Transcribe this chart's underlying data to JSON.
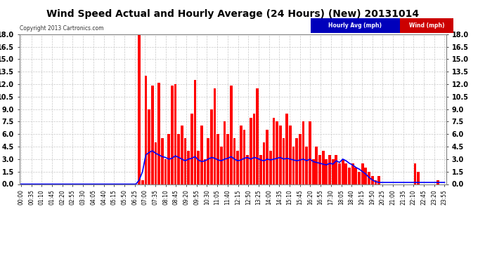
{
  "title": "Wind Speed Actual and Hourly Average (24 Hours) (New) 20131014",
  "copyright": "Copyright 2013 Cartronics.com",
  "legend_hourly_label": "Hourly Avg (mph)",
  "legend_wind_label": "Wind (mph)",
  "ylim": [
    0,
    18.0
  ],
  "yticks": [
    0.0,
    1.5,
    3.0,
    4.5,
    6.0,
    7.5,
    9.0,
    10.5,
    12.0,
    13.5,
    15.0,
    16.5,
    18.0
  ],
  "background_color": "#ffffff",
  "plot_bg_color": "#ffffff",
  "grid_color": "#c8c8c8",
  "bar_color": "#ff0000",
  "line_color": "#0000ff",
  "title_fontsize": 10,
  "tick_fontsize": 6.5,
  "hour_labels": [
    "00:00",
    "00:35",
    "01:10",
    "01:45",
    "02:20",
    "02:55",
    "03:30",
    "04:05",
    "04:40",
    "05:15",
    "05:50",
    "06:25",
    "07:00",
    "07:35",
    "08:10",
    "08:45",
    "09:20",
    "09:55",
    "10:30",
    "11:05",
    "11:40",
    "12:15",
    "12:50",
    "13:25",
    "14:00",
    "14:35",
    "15:10",
    "15:45",
    "16:20",
    "16:55",
    "17:30",
    "18:05",
    "18:40",
    "19:15",
    "19:50",
    "20:25",
    "21:00",
    "21:35",
    "22:10",
    "22:45",
    "23:20",
    "23:55"
  ],
  "wind_values": [
    0.0,
    0.0,
    0.0,
    0.0,
    0.0,
    0.0,
    0.0,
    0.0,
    0.0,
    0.0,
    0.0,
    0.0,
    0.0,
    0.0,
    0.0,
    0.0,
    0.0,
    0.0,
    0.0,
    0.0,
    0.0,
    0.0,
    0.0,
    0.0,
    0.0,
    0.0,
    0.0,
    0.0,
    0.0,
    0.0,
    0.0,
    0.0,
    0.0,
    0.0,
    0.0,
    0.0,
    18.0,
    0.5,
    13.0,
    9.0,
    11.8,
    5.0,
    12.2,
    5.5,
    3.0,
    6.0,
    11.8,
    12.0,
    6.0,
    7.0,
    5.5,
    4.0,
    8.5,
    12.5,
    4.0,
    7.0,
    3.0,
    5.5,
    9.0,
    11.5,
    6.0,
    4.5,
    7.5,
    6.0,
    11.8,
    5.5,
    4.0,
    7.0,
    6.5,
    3.5,
    8.0,
    8.5,
    11.5,
    3.5,
    5.0,
    6.5,
    4.0,
    8.0,
    7.5,
    7.0,
    5.5,
    8.5,
    7.0,
    4.5,
    5.5,
    6.0,
    7.5,
    4.5,
    7.5,
    3.0,
    4.5,
    3.5,
    4.0,
    3.0,
    3.5,
    3.0,
    3.5,
    2.5,
    3.0,
    2.5,
    2.0,
    2.5,
    2.0,
    1.5,
    2.5,
    2.0,
    1.5,
    1.0,
    0.5,
    1.0,
    0.0,
    0.0,
    0.0,
    0.0,
    0.0,
    0.0,
    0.0,
    0.0,
    0.0,
    0.0,
    2.5,
    1.5,
    0.0,
    0.0,
    0.0,
    0.0,
    0.0,
    0.5,
    0.0,
    0.0
  ],
  "hourly_avg_values": [
    0.0,
    0.0,
    0.0,
    0.0,
    0.0,
    0.0,
    0.0,
    0.0,
    0.0,
    0.0,
    0.0,
    0.0,
    0.0,
    0.0,
    0.0,
    0.0,
    0.0,
    0.0,
    0.0,
    0.0,
    0.0,
    0.0,
    0.0,
    0.0,
    0.0,
    0.0,
    0.0,
    0.0,
    0.0,
    0.0,
    0.0,
    0.0,
    0.0,
    0.0,
    0.0,
    0.0,
    0.5,
    1.5,
    3.5,
    3.8,
    4.0,
    3.7,
    3.5,
    3.3,
    3.2,
    3.0,
    3.1,
    3.4,
    3.2,
    3.0,
    2.8,
    3.0,
    3.1,
    3.3,
    2.9,
    2.7,
    2.8,
    3.0,
    3.2,
    3.1,
    2.9,
    2.8,
    3.0,
    3.1,
    3.3,
    3.0,
    2.8,
    2.9,
    3.1,
    3.2,
    3.0,
    3.2,
    3.1,
    2.9,
    2.8,
    3.0,
    2.9,
    3.0,
    3.1,
    3.2,
    3.0,
    3.1,
    3.0,
    2.9,
    2.8,
    2.9,
    3.0,
    2.8,
    3.0,
    2.7,
    2.6,
    2.5,
    2.4,
    2.3,
    2.5,
    2.4,
    2.8,
    2.6,
    3.0,
    2.8,
    2.5,
    2.3,
    2.0,
    1.8,
    1.5,
    1.2,
    0.8,
    0.5,
    0.3,
    0.2,
    0.2,
    0.2,
    0.2,
    0.2,
    0.2,
    0.2,
    0.2,
    0.2,
    0.2,
    0.2,
    0.2,
    0.2,
    0.2,
    0.2,
    0.2,
    0.2,
    0.2,
    0.2,
    0.2,
    0.2
  ]
}
